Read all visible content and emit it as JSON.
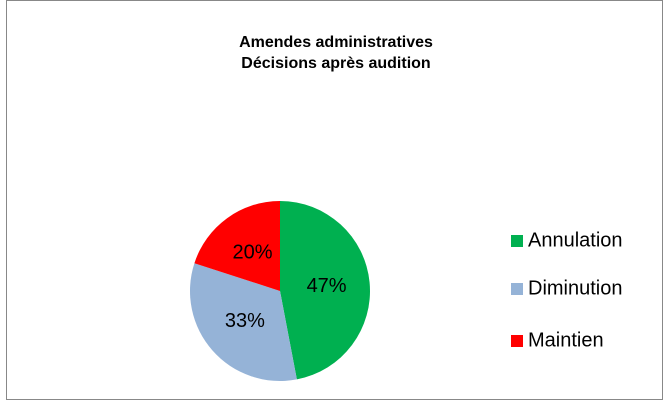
{
  "chart_data": {
    "type": "pie",
    "title": "Amendes administratives",
    "subtitle": "Décisions après audition",
    "categories": [
      "Annulation",
      "Diminution",
      "Maintien"
    ],
    "values": [
      47,
      33,
      20
    ],
    "value_labels": [
      "47%",
      "33%",
      "20%"
    ],
    "colors": [
      "#00b050",
      "#95b3d7",
      "#ff0000"
    ],
    "legend": "right"
  }
}
